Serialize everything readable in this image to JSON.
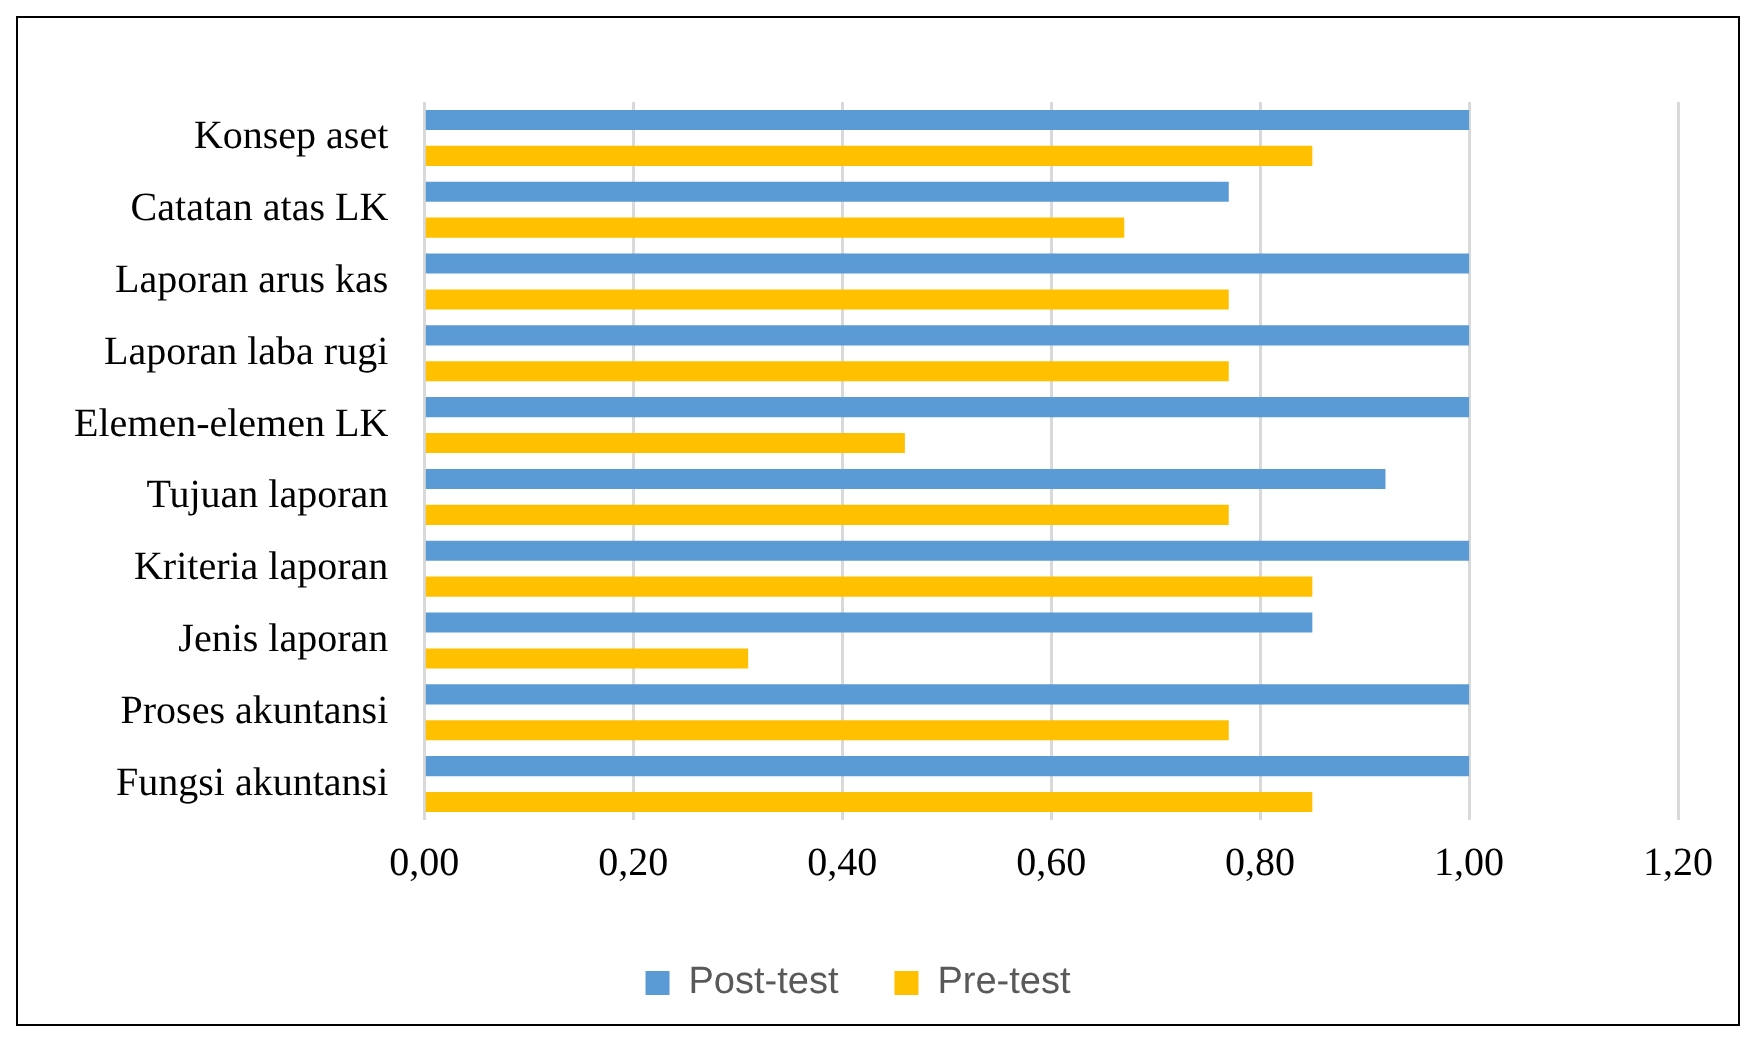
{
  "chart_data": {
    "type": "bar",
    "orientation": "horizontal",
    "categories": [
      "Konsep aset",
      "Catatan atas LK",
      "Laporan arus kas",
      "Laporan laba rugi",
      "Elemen-elemen LK",
      "Tujuan laporan",
      "Kriteria laporan",
      "Jenis laporan",
      "Proses akuntansi",
      "Fungsi akuntansi"
    ],
    "series": [
      {
        "name": "Post-test",
        "color": "#5b9bd5",
        "values": [
          1.0,
          0.77,
          1.0,
          1.0,
          1.0,
          0.92,
          1.0,
          0.85,
          1.0,
          1.0
        ]
      },
      {
        "name": "Pre-test",
        "color": "#ffc000",
        "values": [
          0.85,
          0.67,
          0.77,
          0.77,
          0.46,
          0.77,
          0.85,
          0.31,
          0.77,
          0.85
        ]
      }
    ],
    "xlim": [
      0,
      1.2
    ],
    "xticks": [
      {
        "value": 0,
        "label": "0,00"
      },
      {
        "value": 0.2,
        "label": "0,20"
      },
      {
        "value": 0.4,
        "label": "0,40"
      },
      {
        "value": 0.6,
        "label": "0,60"
      },
      {
        "value": 0.8,
        "label": "0,80"
      },
      {
        "value": 1.0,
        "label": "1,00"
      },
      {
        "value": 1.2,
        "label": "1,20"
      }
    ],
    "grid": "x",
    "legend": "bottom"
  }
}
